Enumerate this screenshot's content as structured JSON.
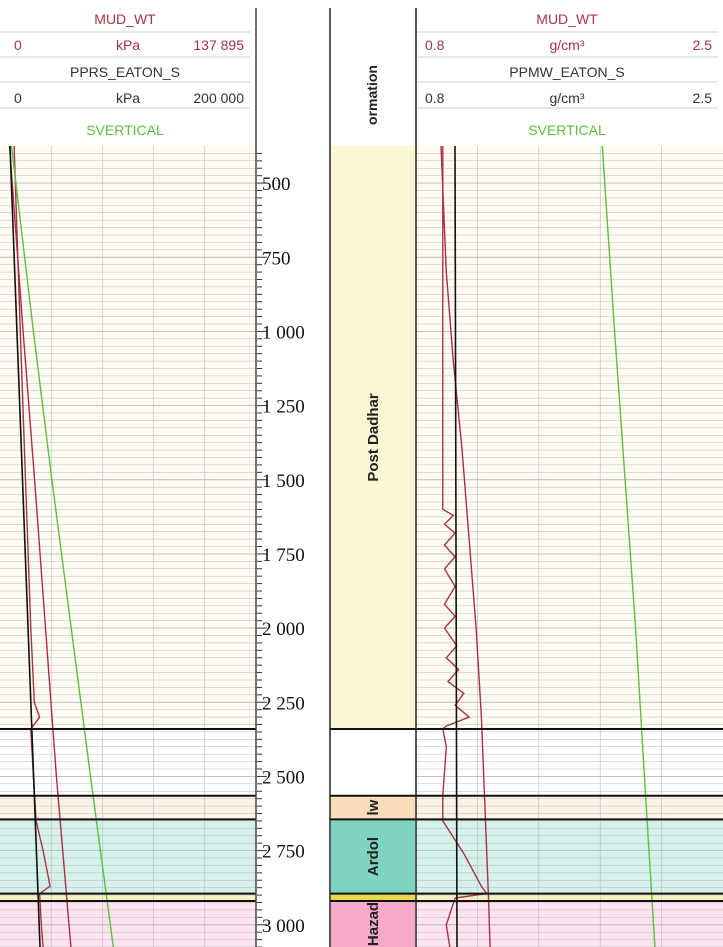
{
  "header": {
    "left": {
      "track1_name": "MUD_WT",
      "track1_min": "0",
      "track1_unit": "kPa",
      "track1_max": "137 895",
      "track2_name": "PPRS_EATON_S",
      "track2_min": "0",
      "track2_unit": "kPa",
      "track2_max": "200 000",
      "track3_name": "SVERTICAL"
    },
    "formation_title": "ormation",
    "right": {
      "track1_name": "MUD_WT",
      "track1_min": "0.8",
      "track1_unit": "g/cm³",
      "track1_max": "2.5",
      "track2_name": "PPMW_EATON_S",
      "track2_min": "0.8",
      "track2_unit": "g/cm³",
      "track2_max": "2.5",
      "track3_name": "SVERTICAL"
    }
  },
  "colors": {
    "mud_wt": "#a8343f",
    "pore_pressure": "#b02a4a",
    "svertical": "#5cbf3a",
    "grid": "#b8b8c8",
    "boundary": "#111111"
  },
  "chart_data": {
    "type": "line",
    "depth_axis": {
      "ticks": [
        500,
        750,
        1000,
        1250,
        1500,
        1750,
        2000,
        2250,
        2500,
        2750,
        3000
      ],
      "tick_labels": [
        "500",
        "750",
        "1 000",
        "1 250",
        "1 500",
        "1 750",
        "2 000",
        "2 250",
        "2 500",
        "2 750",
        "3 000"
      ],
      "range": [
        375,
        3075
      ]
    },
    "formations": [
      {
        "name": "Post Dadhar",
        "top": 375,
        "base": 2340,
        "color": "#fbf7d2"
      },
      {
        "name": "",
        "top": 2340,
        "base": 2565,
        "color": "#ffffff"
      },
      {
        "name": "lw",
        "top": 2565,
        "base": 2645,
        "color": "#f9dcb8"
      },
      {
        "name": "Ardol",
        "top": 2645,
        "base": 2895,
        "color": "#7fd4c1"
      },
      {
        "name": "",
        "top": 2895,
        "base": 2920,
        "color": "#e8d94a"
      },
      {
        "name": "Hazad",
        "top": 2920,
        "base": 3075,
        "color": "#f6aac8"
      }
    ],
    "boundaries": [
      2340,
      2565,
      2645,
      2895,
      2920
    ],
    "left_track": {
      "series": [
        {
          "key": "mud_wt",
          "range": [
            0,
            137895
          ],
          "points": [
            [
              375,
              3500
            ],
            [
              1000,
              7000
            ],
            [
              1500,
              10000
            ],
            [
              2000,
              13000
            ],
            [
              2250,
              15000
            ],
            [
              2300,
              18000
            ],
            [
              2340,
              13000
            ],
            [
              2500,
              14500
            ],
            [
              2650,
              16000
            ],
            [
              2750,
              20000
            ],
            [
              2870,
              24000
            ],
            [
              2895,
              18000
            ],
            [
              3000,
              19000
            ],
            [
              3075,
              20000
            ]
          ]
        },
        {
          "key": "pore_pressure",
          "range": [
            0,
            200000
          ],
          "points": [
            [
              375,
              1200
            ],
            [
              1000,
              12500
            ],
            [
              1500,
              22000
            ],
            [
              2000,
              31000
            ],
            [
              2500,
              40000
            ],
            [
              3075,
              52000
            ]
          ]
        },
        {
          "key": "svertical",
          "range": [
            0,
            137895
          ],
          "points": [
            [
              375,
              2000
            ],
            [
              1000,
              14500
            ],
            [
              1500,
              25000
            ],
            [
              2000,
              36000
            ],
            [
              2500,
              47000
            ],
            [
              3075,
              60000
            ]
          ]
        }
      ]
    },
    "right_track": {
      "series": [
        {
          "key": "mud_wt",
          "range": [
            0.8,
            2.5
          ],
          "points": [
            [
              375,
              0.93
            ],
            [
              1500,
              0.93
            ],
            [
              1600,
              0.93
            ],
            [
              1620,
              0.99
            ],
            [
              1650,
              0.94
            ],
            [
              1680,
              1.0
            ],
            [
              1720,
              0.94
            ],
            [
              1760,
              1.0
            ],
            [
              1800,
              0.94
            ],
            [
              1860,
              1.0
            ],
            [
              1920,
              0.94
            ],
            [
              1960,
              1.0
            ],
            [
              2000,
              0.94
            ],
            [
              2060,
              1.01
            ],
            [
              2100,
              0.95
            ],
            [
              2140,
              1.02
            ],
            [
              2180,
              0.96
            ],
            [
              2220,
              1.05
            ],
            [
              2260,
              1.0
            ],
            [
              2300,
              1.08
            ],
            [
              2330,
              0.95
            ],
            [
              2340,
              0.93
            ],
            [
              2400,
              0.95
            ],
            [
              2565,
              0.93
            ],
            [
              2650,
              0.93
            ],
            [
              2760,
              1.05
            ],
            [
              2870,
              1.15
            ],
            [
              2895,
              1.18
            ],
            [
              2910,
              1.0
            ],
            [
              3000,
              0.95
            ],
            [
              3075,
              0.97
            ]
          ]
        },
        {
          "key": "pore_pressure",
          "range": [
            0.8,
            2.5
          ],
          "points": [
            [
              375,
              0.92
            ],
            [
              800,
              0.95
            ],
            [
              1100,
              0.99
            ],
            [
              1400,
              1.04
            ],
            [
              1700,
              1.08
            ],
            [
              2000,
              1.12
            ],
            [
              2300,
              1.15
            ],
            [
              2600,
              1.17
            ],
            [
              2900,
              1.19
            ],
            [
              3075,
              1.2
            ]
          ]
        },
        {
          "key": "svertical",
          "range": [
            0.8,
            2.5
          ],
          "points": [
            [
              375,
              1.84
            ],
            [
              1000,
              1.91
            ],
            [
              1500,
              1.97
            ],
            [
              2000,
              2.03
            ],
            [
              2500,
              2.08
            ],
            [
              3075,
              2.14
            ]
          ]
        }
      ]
    }
  }
}
